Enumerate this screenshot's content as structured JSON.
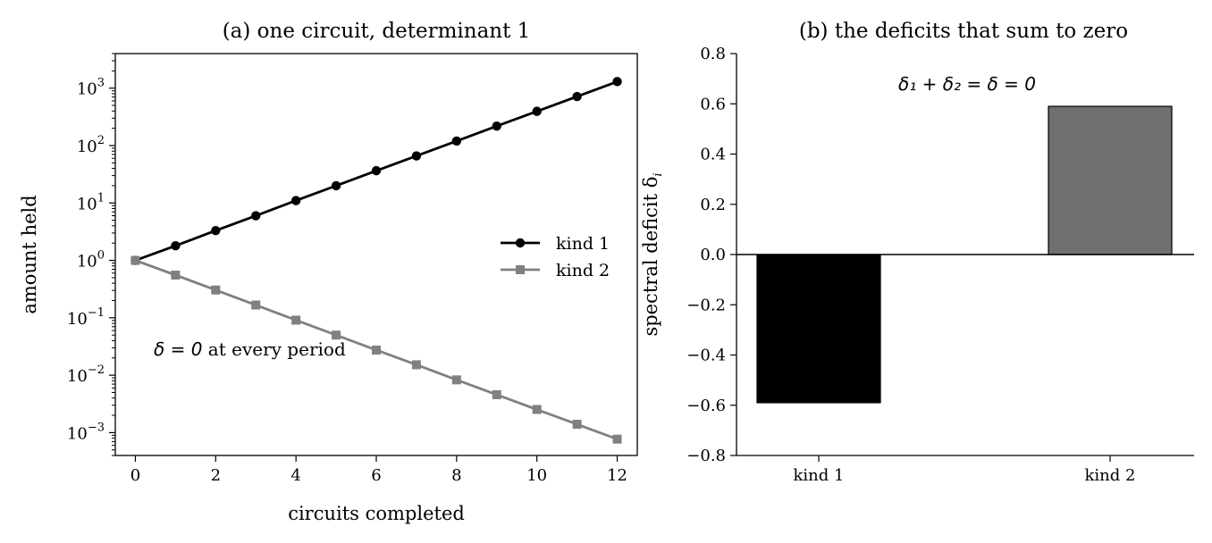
{
  "chart_data": [
    {
      "type": "line",
      "title": "(a) one circuit, determinant 1",
      "xlabel": "circuits completed",
      "ylabel": "amount held",
      "yscale": "log",
      "xlim": [
        -0.5,
        12.5
      ],
      "ylim": [
        0.0004,
        4000
      ],
      "x_ticks": [
        0,
        2,
        4,
        6,
        8,
        10,
        12
      ],
      "x_tick_labels": [
        "0",
        "2",
        "4",
        "6",
        "8",
        "10",
        "12"
      ],
      "y_ticks": [
        0.001,
        0.01,
        0.1,
        1,
        10,
        100,
        1000
      ],
      "y_tick_labels": [
        {
          "base": "10",
          "exp": "−3"
        },
        {
          "base": "10",
          "exp": "−2"
        },
        {
          "base": "10",
          "exp": "−1"
        },
        {
          "base": "10",
          "exp": "0"
        },
        {
          "base": "10",
          "exp": "1"
        },
        {
          "base": "10",
          "exp": "2"
        },
        {
          "base": "10",
          "exp": "3"
        }
      ],
      "x": [
        0,
        1,
        2,
        3,
        4,
        5,
        6,
        7,
        8,
        9,
        10,
        11,
        12
      ],
      "series": [
        {
          "name": "kind 1",
          "color": "#000000",
          "marker": "circle",
          "values": [
            1,
            1.8,
            3.3,
            6.0,
            11.0,
            20.0,
            36.5,
            66.0,
            120,
            218,
            395,
            715,
            1300
          ]
        },
        {
          "name": "kind 2",
          "color": "#808080",
          "marker": "square",
          "values": [
            1,
            0.555,
            0.305,
            0.167,
            0.091,
            0.05,
            0.0274,
            0.0152,
            0.0083,
            0.00458,
            0.00253,
            0.0014,
            0.00077
          ]
        }
      ],
      "legend": {
        "placement": "center-right"
      },
      "annotation": {
        "math": "δ = 0",
        "text": " at every period"
      }
    },
    {
      "type": "bar",
      "title": "(b) the deficits that sum to zero",
      "ylabel": "spectral deficit δ",
      "ylabel_subscript": "i",
      "categories": [
        "kind 1",
        "kind 2"
      ],
      "values": [
        -0.59,
        0.59
      ],
      "colors": [
        "#000000",
        "#707070"
      ],
      "ylim": [
        -0.8,
        0.8
      ],
      "y_ticks": [
        -0.8,
        -0.6,
        -0.4,
        -0.2,
        0.0,
        0.2,
        0.4,
        0.6,
        0.8
      ],
      "y_tick_labels": [
        "−0.8",
        "−0.6",
        "−0.4",
        "−0.2",
        "0.0",
        "0.2",
        "0.4",
        "0.6",
        "0.8"
      ],
      "zero_line": true,
      "annotation": "δ₁ + δ₂ = δ = 0"
    }
  ]
}
